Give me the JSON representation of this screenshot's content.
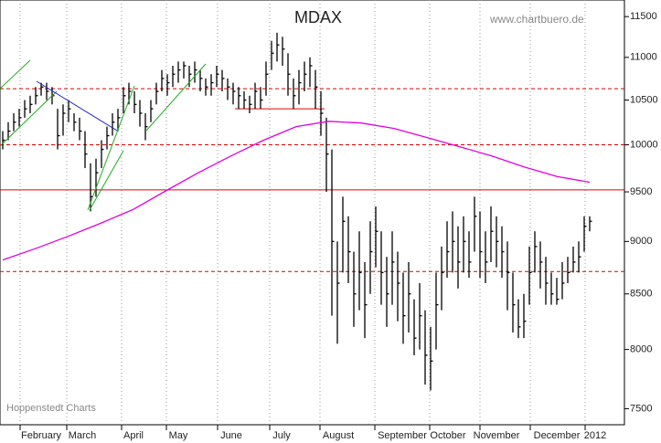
{
  "chart_data": {
    "type": "ohlc",
    "title": "MDAX",
    "source": "www.chartbuero.de",
    "credit": "Hoppenstedt Charts",
    "categories": [
      "February",
      "March",
      "April",
      "May",
      "June",
      "July",
      "August",
      "September",
      "October",
      "November",
      "December",
      "2012"
    ],
    "log_scale": true,
    "ylim": [
      7370,
      11710
    ],
    "yticks": [
      7500,
      8000,
      8500,
      9000,
      9500,
      10000,
      10500,
      11000,
      11500
    ],
    "bar_color": "#000000",
    "ma_color": "#e000e0",
    "line_color": "#e00000",
    "high": [
      10150,
      10250,
      10350,
      10400,
      10500,
      10550,
      10650,
      10700,
      10700,
      10650,
      10400,
      10450,
      10500,
      10350,
      10300,
      10150,
      9800,
      9850,
      10050,
      10200,
      10350,
      10400,
      10650,
      10700,
      10600,
      10500,
      10350,
      10500,
      10700,
      10850,
      10800,
      10900,
      10950,
      10950,
      10900,
      10950,
      10850,
      10750,
      10800,
      10900,
      10850,
      10750,
      10700,
      10650,
      10600,
      10550,
      10700,
      10650,
      10950,
      11200,
      11300,
      11250,
      11050,
      10750,
      10850,
      10950,
      11000,
      10850,
      10600,
      10300,
      9950,
      9000,
      9450,
      9250,
      8900,
      9100,
      8800,
      9200,
      9350,
      9100,
      8850,
      9100,
      8900,
      8700,
      8800,
      8450,
      8600,
      8350,
      8200,
      8700,
      8950,
      9200,
      9300,
      9150,
      9250,
      9100,
      9450,
      9300,
      9100,
      9350,
      9250,
      9150,
      9000,
      8700,
      8450,
      8500,
      8950,
      9100,
      9000,
      8850,
      8700,
      8650,
      8800,
      8850,
      8950,
      9000,
      9250,
      9250
    ],
    "low": [
      9950,
      10050,
      10150,
      10200,
      10300,
      10350,
      10450,
      10550,
      10500,
      10450,
      9950,
      10100,
      10250,
      10150,
      10050,
      9750,
      9300,
      9450,
      9750,
      9950,
      10100,
      10150,
      10350,
      10450,
      10350,
      10200,
      10050,
      10250,
      10450,
      10600,
      10550,
      10650,
      10700,
      10750,
      10650,
      10700,
      10600,
      10550,
      10550,
      10650,
      10600,
      10500,
      10450,
      10400,
      10400,
      10350,
      10400,
      10400,
      10550,
      10850,
      10950,
      10900,
      10550,
      10400,
      10450,
      10600,
      10650,
      10400,
      10100,
      9500,
      8300,
      8050,
      8700,
      8600,
      8200,
      8350,
      8100,
      8500,
      8750,
      8400,
      8200,
      8400,
      8250,
      8050,
      8150,
      7950,
      8000,
      7700,
      7650,
      8000,
      8350,
      8650,
      8700,
      8550,
      8700,
      8650,
      8900,
      8650,
      8600,
      8800,
      8750,
      8650,
      8350,
      8150,
      8100,
      8100,
      8400,
      8700,
      8550,
      8400,
      8400,
      8400,
      8450,
      8600,
      8700,
      8700,
      8900,
      9100
    ],
    "close": [
      10050,
      10150,
      10250,
      10300,
      10400,
      10450,
      10550,
      10650,
      10600,
      10550,
      10100,
      10350,
      10400,
      10250,
      10150,
      9900,
      9450,
      9700,
      9950,
      10100,
      10250,
      10300,
      10550,
      10600,
      10450,
      10350,
      10200,
      10400,
      10600,
      10750,
      10700,
      10800,
      10850,
      10900,
      10800,
      10850,
      10750,
      10650,
      10700,
      10800,
      10750,
      10650,
      10600,
      10550,
      10500,
      10450,
      10600,
      10500,
      10800,
      11050,
      11150,
      11100,
      10800,
      10550,
      10700,
      10800,
      10900,
      10650,
      10350,
      9900,
      9000,
      8600,
      9200,
      8900,
      8500,
      8700,
      8400,
      8900,
      9100,
      8700,
      8500,
      8800,
      8600,
      8300,
      8500,
      8100,
      8300,
      7950,
      7900,
      8400,
      8700,
      8900,
      9000,
      8800,
      9000,
      8800,
      9250,
      8900,
      8800,
      9100,
      9000,
      8900,
      8700,
      8400,
      8200,
      8250,
      8700,
      8950,
      8800,
      8600,
      8500,
      8450,
      8600,
      8700,
      8800,
      8850,
      9150,
      9200
    ],
    "moving_average": [
      8820,
      8930,
      9050,
      9180,
      9320,
      9510,
      9700,
      9880,
      10050,
      10200,
      10260,
      10240,
      10180,
      10080,
      9980,
      9880,
      9760,
      9660,
      9600
    ],
    "hlines": [
      {
        "value": 10630,
        "style": "dashed"
      },
      {
        "value": 10000,
        "style": "dashed"
      },
      {
        "value": 9520,
        "style": "solid"
      },
      {
        "value": 8710,
        "style": "dashed"
      }
    ],
    "support_line": 10400
  }
}
